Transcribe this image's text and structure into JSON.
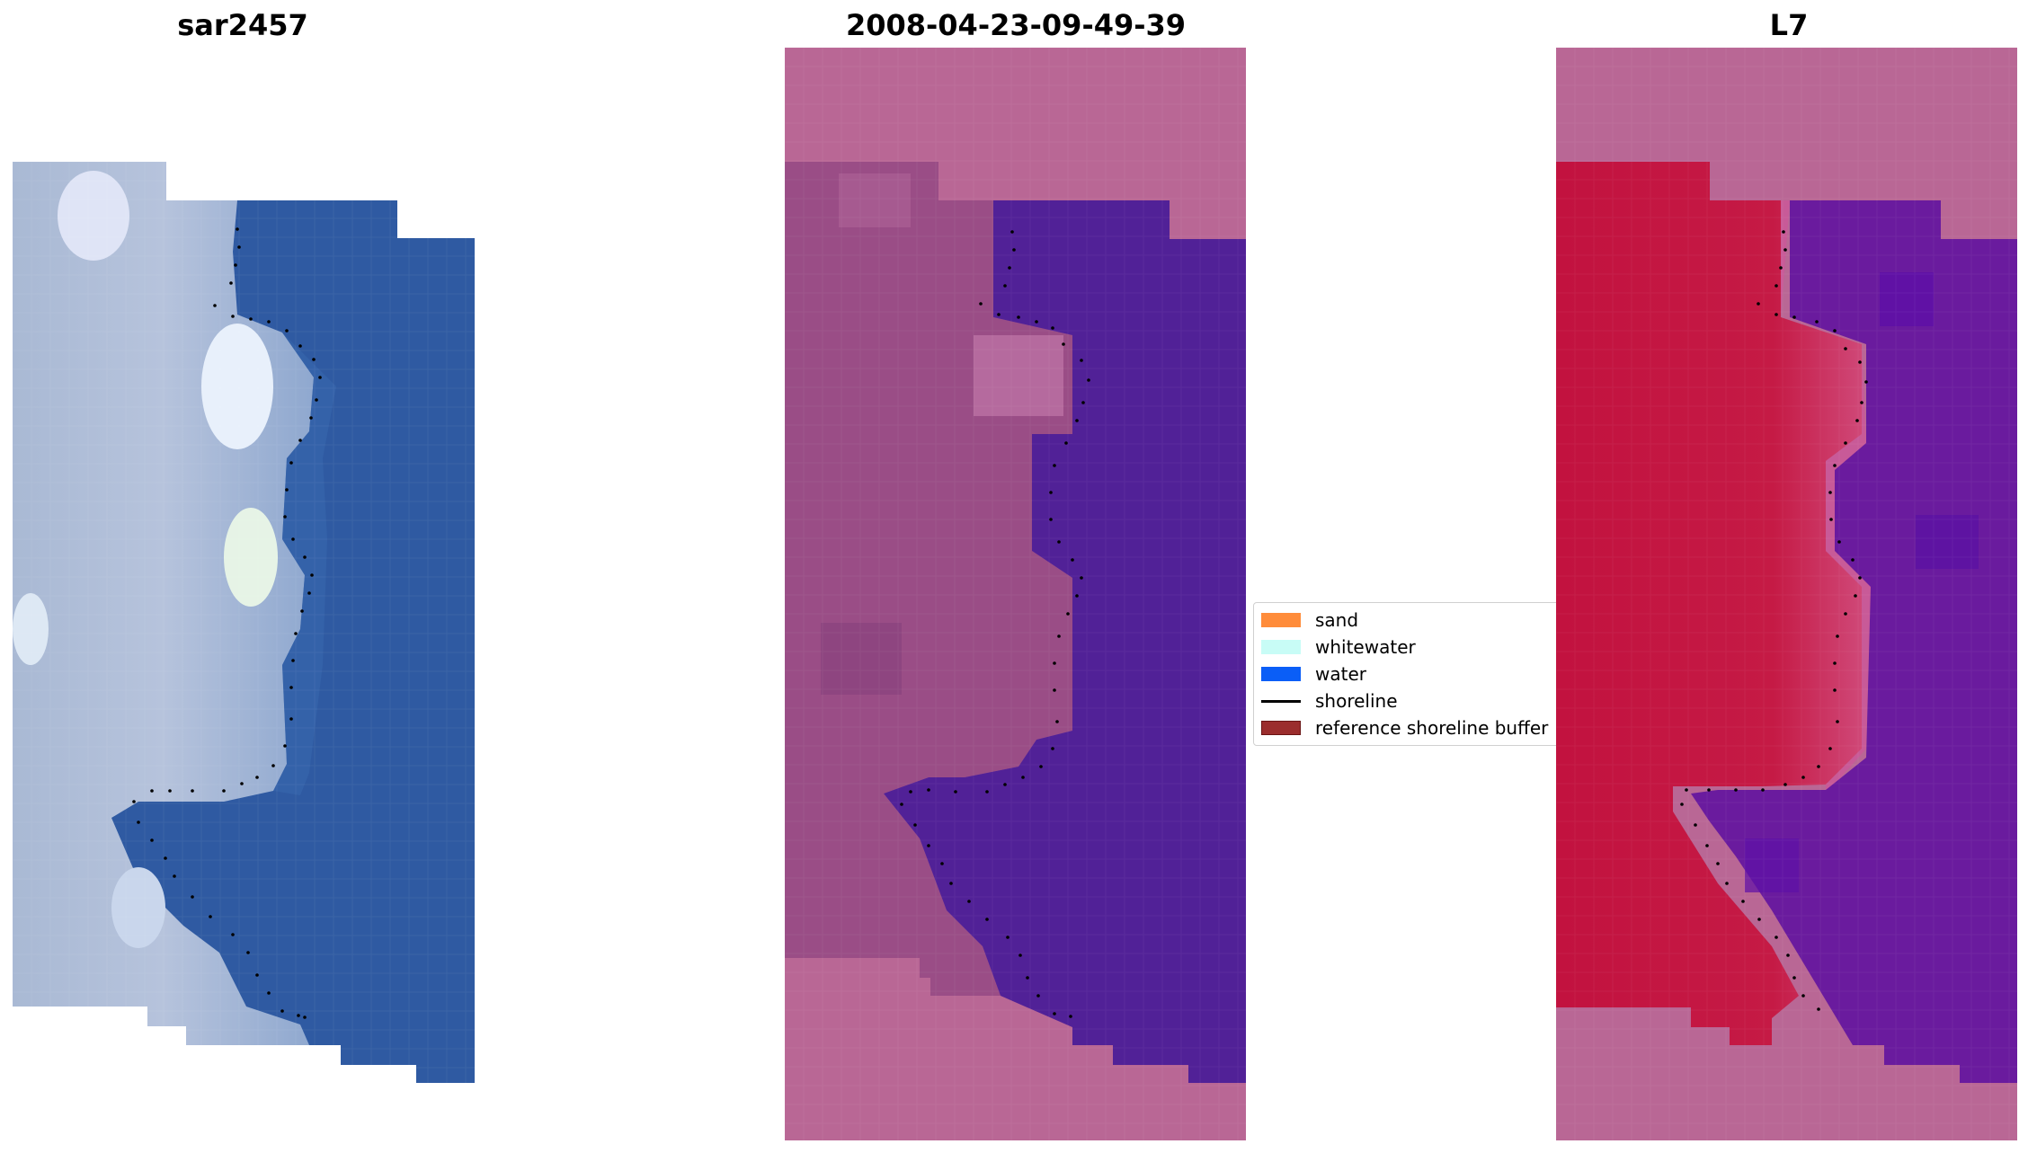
{
  "titles": {
    "left": "sar2457",
    "middle": "2008-04-23-09-49-39",
    "right": "L7"
  },
  "legend": {
    "items": [
      {
        "label": "sand",
        "kind": "patch",
        "color": "#ff8c3a"
      },
      {
        "label": "whitewater",
        "kind": "patch",
        "color": "#c8fcf6"
      },
      {
        "label": "water",
        "kind": "patch",
        "color": "#0a5ef7"
      },
      {
        "label": "shoreline",
        "kind": "line",
        "color": "#000000"
      },
      {
        "label": "reference shoreline buffer",
        "kind": "patch",
        "color": "#9b2d2d"
      }
    ]
  },
  "colors": {
    "pink_frame": "#b96795",
    "classified_water": "#512197",
    "rgb_water": "#2f5aa2",
    "land_red": "#c2123f",
    "ndwi_water": "#6a1b9e"
  }
}
